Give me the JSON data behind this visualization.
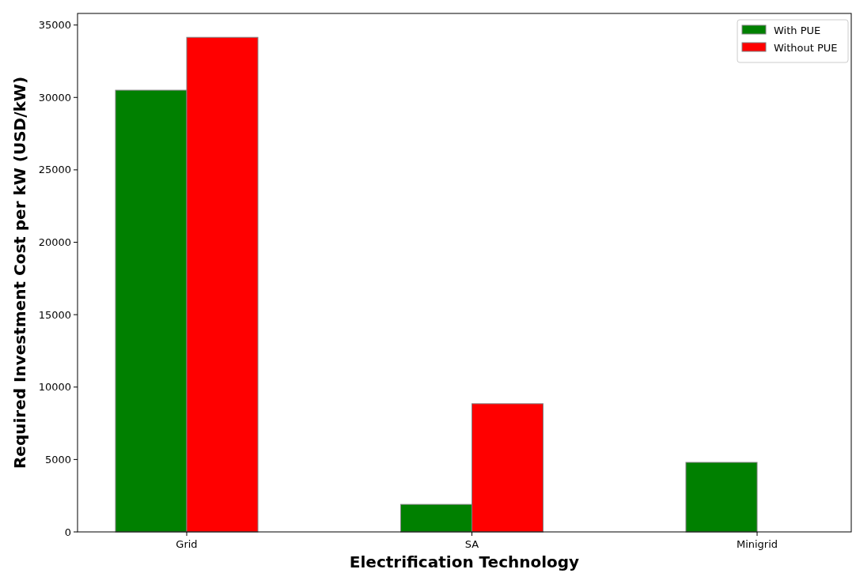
{
  "chart_data": {
    "type": "bar",
    "xlabel": "Electrification Technology",
    "ylabel": "Required Investment Cost per kW (USD/kW)",
    "categories": [
      "Grid",
      "SA",
      "Minigrid"
    ],
    "series": [
      {
        "name": "With PUE",
        "color": "#008000",
        "values": [
          30500,
          1900,
          4800
        ]
      },
      {
        "name": "Without PUE",
        "color": "#ff0000",
        "values": [
          34150,
          8850,
          0
        ]
      }
    ],
    "ylim": [
      0,
      35800
    ],
    "yticks": [
      0,
      5000,
      10000,
      15000,
      20000,
      25000,
      30000,
      35000
    ],
    "legend": "top right"
  }
}
